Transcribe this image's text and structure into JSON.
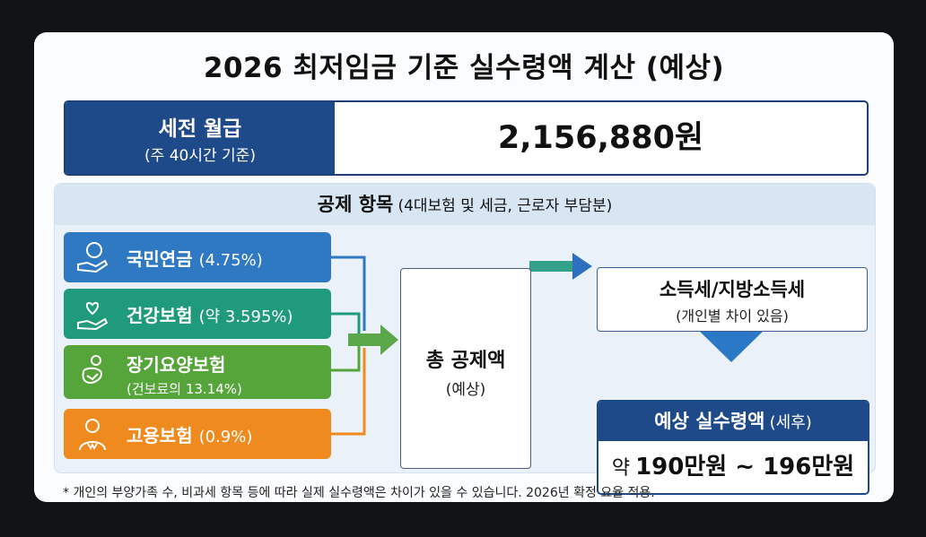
{
  "title": "2026 최저임금 기준 실수령액 계산 (예상)",
  "salary": {
    "label": "세전 월급",
    "sublabel": "(주 40시간 기준)",
    "value": "2,156,880원"
  },
  "deductions": {
    "header_main": "공제 항목",
    "header_sub": "(4대보험 및 세금, 근로자 부담분)",
    "items": [
      {
        "name": "국민연금",
        "rate": "(4.75%)",
        "color": "#2f79c2",
        "icon": "coin-hand-icon"
      },
      {
        "name": "건강보험",
        "rate": "(약 3.595%)",
        "color": "#1f9a7c",
        "icon": "heart-hand-icon"
      },
      {
        "name": "장기요양보험",
        "sub": "(건보료의 13.14%)",
        "color": "#56a53a",
        "icon": "care-person-icon"
      },
      {
        "name": "고용보험",
        "rate": "(0.9%)",
        "color": "#ee8a1e",
        "icon": "worker-icon"
      }
    ]
  },
  "total": {
    "label": "총 공제액",
    "sub": "(예상)"
  },
  "tax": {
    "label": "소득세/지방소득세",
    "sub": "(개인별 차이 있음)"
  },
  "result": {
    "label": "예상 실수령액",
    "label_sub": "(세후)",
    "prefix": "약",
    "value": "190만원 ~ 196만원"
  },
  "footnote": "* 개인의 부양가족 수, 비과세 항목 등에 따라 실제 실수령액은 차이가 있을 수 있습니다. 2026년 확정 요율 적용."
}
